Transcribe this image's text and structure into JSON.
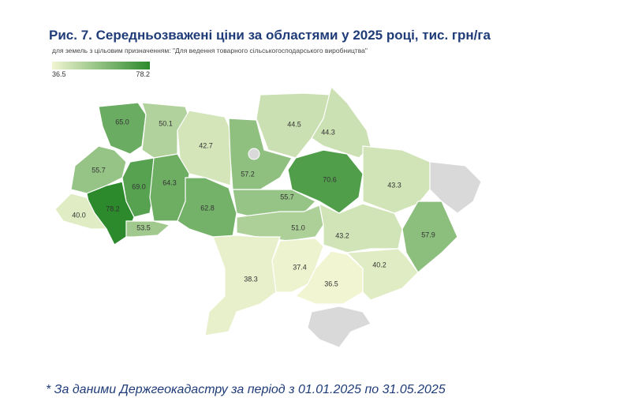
{
  "title": "Рис. 7. Середньозважені ціни за областями у 2025 році, тис. грн/га",
  "subtitle": "для земель з цільовим призначенням: \"Для ведення товарного сільськогосподарського виробництва\"",
  "legend": {
    "min": 36.5,
    "max": 78.2,
    "color_min": "#f1f5d2",
    "color_max": "#2c8a2c"
  },
  "regions": {
    "values": [
      65.0,
      50.1,
      42.7,
      57.2,
      44.5,
      44.3,
      70.6,
      43.3,
      55.7,
      69.0,
      64.3,
      55.7,
      78.2,
      40.0,
      53.5,
      62.8,
      51.0,
      43.2,
      57.9,
      38.3,
      37.4,
      36.5,
      40.2
    ],
    "value_labels": [
      "65.0",
      "50.1",
      "42.7",
      "57.2",
      "44.5",
      "44.3",
      "70.6",
      "43.3",
      "55.7",
      "69.0",
      "64.3",
      "55.7",
      "78.2",
      "40.0",
      "53.5",
      "62.8",
      "51.0",
      "43.2",
      "57.9",
      "38.3",
      "37.4",
      "36.5",
      "40.2"
    ]
  },
  "footnote": "* За даними Держгеокадастру за період з 01.01.2025 по 31.05.2025"
}
